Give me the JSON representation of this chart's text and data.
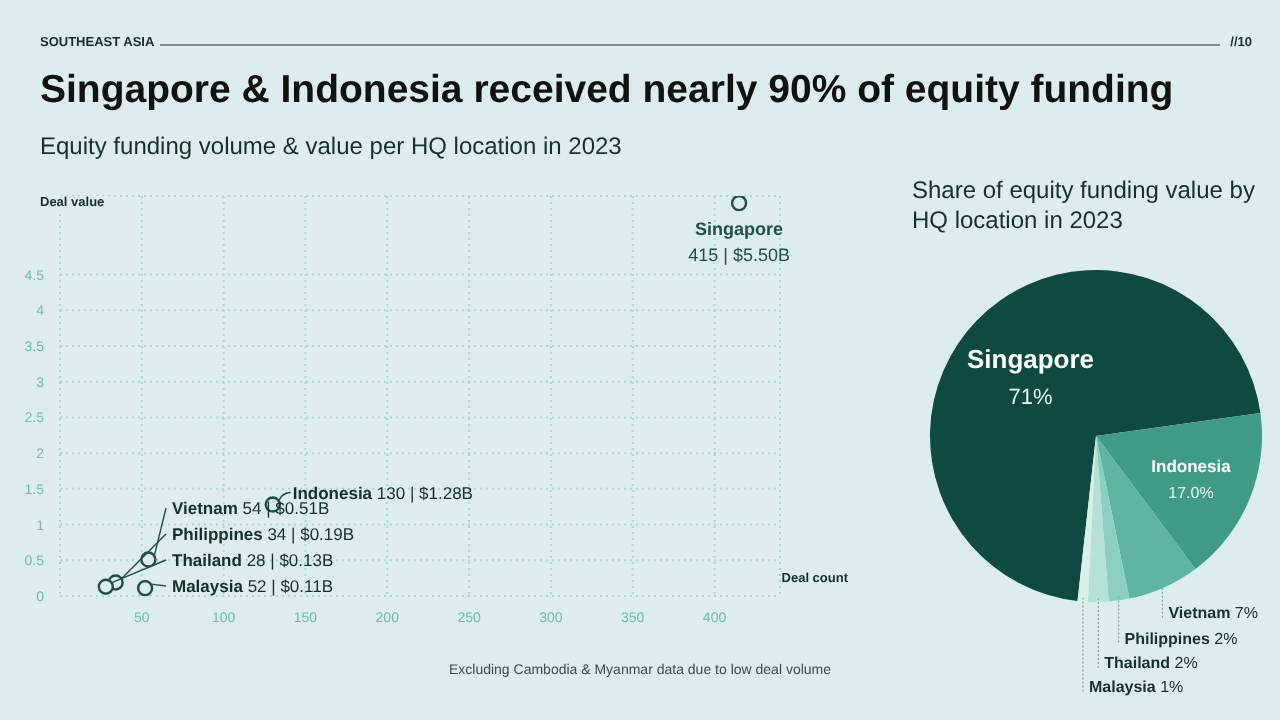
{
  "chart_data": [
    {
      "type": "scatter",
      "title": "Singapore & Indonesia received nearly 90% of equity funding",
      "subtitle": "Equity funding volume & value per HQ location in 2023",
      "xlabel": "Deal count",
      "ylabel": "Deal value",
      "xlim": [
        0,
        440
      ],
      "xticks": [
        50,
        100,
        150,
        200,
        250,
        300,
        350,
        400
      ],
      "ylim": [
        0,
        5.6
      ],
      "yticks": [
        0,
        0.5,
        1,
        1.5,
        2,
        2.5,
        3,
        3.5,
        4,
        4.5
      ],
      "grid": true,
      "marker": "circle",
      "series": [
        {
          "color": "#1f4f47",
          "x": [
            415,
            130,
            54,
            34,
            28,
            52
          ],
          "values": [
            5.5,
            1.28,
            0.51,
            0.19,
            0.13,
            0.11
          ],
          "value_labels": [
            "Singapore 415 | $5.50B",
            "Indonesia 130 | $1.28B",
            "Vietnam 54 | $0.51B",
            "Philippines 34 | $0.19B",
            "Thailand 28 | $0.13B",
            "Malaysia 52 | $0.11B"
          ]
        }
      ],
      "annotations": [
        "SOUTHEAST ASIA",
        "//10",
        "Excluding Cambodia & Myanmar data due to low deal volume"
      ]
    },
    {
      "type": "pie",
      "title": "Share of equity funding value by HQ location in 2023",
      "categories": [
        "Singapore",
        "Indonesia",
        "Vietnam",
        "Philippines",
        "Thailand",
        "Malaysia"
      ],
      "values": [
        71,
        17.0,
        7,
        2,
        2,
        1
      ],
      "colors": [
        "#0e4a40",
        "#3f9a86",
        "#5fb5a3",
        "#8ccfc2",
        "#b5e0d8",
        "#d8efea"
      ],
      "value_labels": [
        "71%",
        "17.0%",
        "7%",
        "2%",
        "2%",
        "1%"
      ]
    }
  ]
}
